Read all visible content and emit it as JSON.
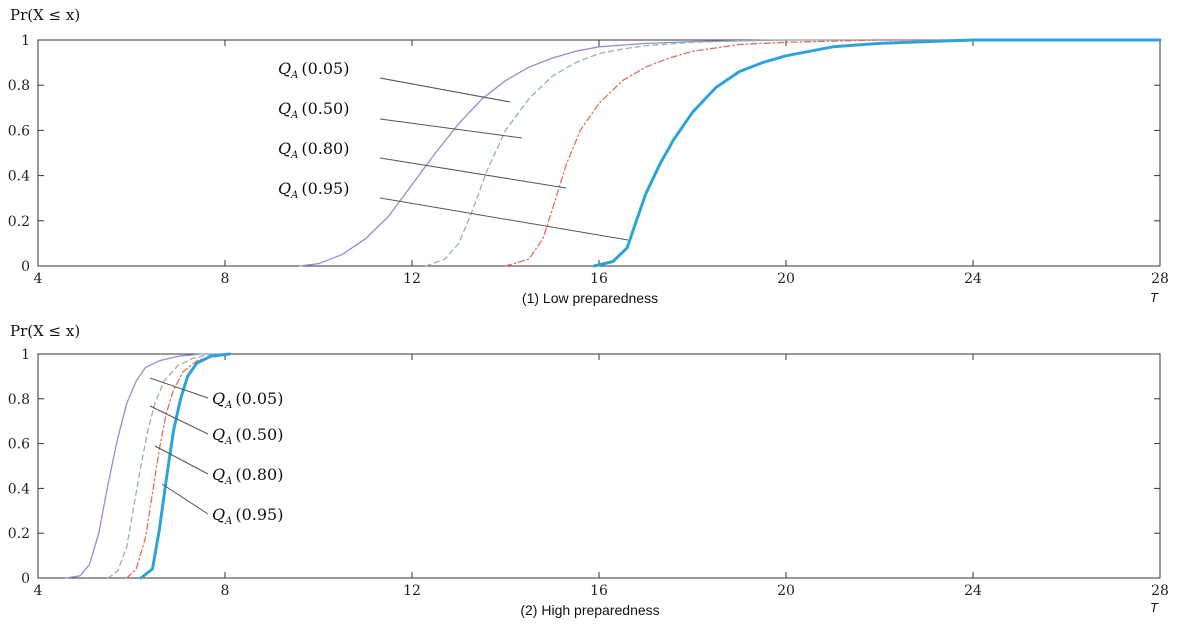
{
  "chart_data": [
    {
      "type": "line",
      "caption": "(1) Low preparedness",
      "ylabel": "Pr(X ≤ x)",
      "xlabel": "T",
      "xlim": [
        4,
        28
      ],
      "ylim": [
        0,
        1
      ],
      "xticks": [
        "4",
        "8",
        "12",
        "16",
        "20",
        "24",
        "28"
      ],
      "yticks": [
        "0",
        "0.2",
        "0.4",
        "0.6",
        "0.8",
        "1"
      ],
      "grid": false,
      "series": [
        {
          "name": "Q_A (0.05)",
          "color": "#8f8fd6",
          "style": "solid",
          "x": [
            9.6,
            10,
            10.5,
            11,
            11.5,
            12,
            12.5,
            13,
            13.5,
            14,
            14.5,
            15,
            15.5,
            16,
            17,
            18,
            19,
            20,
            22,
            24,
            28
          ],
          "y": [
            0,
            0.01,
            0.05,
            0.12,
            0.22,
            0.36,
            0.5,
            0.63,
            0.74,
            0.82,
            0.88,
            0.92,
            0.95,
            0.97,
            0.985,
            0.993,
            0.997,
            1,
            1,
            1,
            1
          ]
        },
        {
          "name": "Q_A (0.50)",
          "color": "#8fb89a",
          "style": "dashed",
          "x": [
            12.3,
            12.7,
            13,
            13.3,
            13.6,
            14,
            14.5,
            15,
            15.5,
            16,
            16.5,
            17,
            18,
            19,
            20,
            22,
            24,
            28
          ],
          "y": [
            0,
            0.03,
            0.1,
            0.25,
            0.42,
            0.6,
            0.74,
            0.84,
            0.9,
            0.94,
            0.96,
            0.975,
            0.99,
            0.996,
            1,
            1,
            1,
            1
          ]
        },
        {
          "name": "Q_A (0.80)",
          "color": "#e86a5e",
          "style": "dashdot",
          "x": [
            14,
            14.5,
            14.8,
            15,
            15.3,
            15.6,
            16,
            16.5,
            17,
            17.5,
            18,
            19,
            20,
            21,
            22,
            24,
            28
          ],
          "y": [
            0,
            0.03,
            0.12,
            0.25,
            0.45,
            0.6,
            0.72,
            0.82,
            0.88,
            0.92,
            0.95,
            0.98,
            0.99,
            0.995,
            1,
            1,
            1
          ]
        },
        {
          "name": "Q_A (0.95)",
          "color": "#2ea3d8",
          "style": "solid-thick",
          "x": [
            15.9,
            16.3,
            16.6,
            16.8,
            17,
            17.3,
            17.6,
            18,
            18.5,
            19,
            19.5,
            20,
            21,
            22,
            23,
            24,
            28
          ],
          "y": [
            0,
            0.02,
            0.08,
            0.2,
            0.32,
            0.45,
            0.56,
            0.68,
            0.79,
            0.86,
            0.9,
            0.93,
            0.97,
            0.985,
            0.993,
            1,
            1
          ]
        }
      ],
      "annotations": [
        {
          "base": "Q",
          "sub": "A",
          "arg": "(0.05)"
        },
        {
          "base": "Q",
          "sub": "A",
          "arg": "(0.50)"
        },
        {
          "base": "Q",
          "sub": "A",
          "arg": "(0.80)"
        },
        {
          "base": "Q",
          "sub": "A",
          "arg": "(0.95)"
        }
      ]
    },
    {
      "type": "line",
      "caption": "(2) High preparedness",
      "ylabel": "Pr(X ≤ x)",
      "xlabel": "T",
      "xlim": [
        4,
        28
      ],
      "ylim": [
        0,
        1
      ],
      "xticks": [
        "4",
        "8",
        "12",
        "16",
        "20",
        "24",
        "28"
      ],
      "yticks": [
        "0",
        "0.2",
        "0.4",
        "0.6",
        "0.8",
        "1"
      ],
      "grid": false,
      "series": [
        {
          "name": "Q_A (0.05)",
          "color": "#8f8fd6",
          "style": "solid",
          "x": [
            4.6,
            4.9,
            5.1,
            5.3,
            5.5,
            5.7,
            5.9,
            6.1,
            6.3,
            6.6,
            7,
            7.5,
            8
          ],
          "y": [
            0,
            0.01,
            0.06,
            0.2,
            0.42,
            0.62,
            0.78,
            0.88,
            0.94,
            0.97,
            0.99,
            1,
            1
          ]
        },
        {
          "name": "Q_A (0.50)",
          "color": "#8fb89a",
          "style": "dashed",
          "x": [
            5.5,
            5.7,
            5.9,
            6.05,
            6.2,
            6.35,
            6.5,
            6.7,
            7,
            7.3,
            7.6,
            8
          ],
          "y": [
            0,
            0.03,
            0.14,
            0.32,
            0.5,
            0.66,
            0.78,
            0.88,
            0.95,
            0.98,
            0.995,
            1
          ]
        },
        {
          "name": "Q_A (0.80)",
          "color": "#e86a5e",
          "style": "dashdot",
          "x": [
            5.9,
            6.1,
            6.3,
            6.45,
            6.6,
            6.75,
            6.9,
            7.1,
            7.4,
            7.7,
            8
          ],
          "y": [
            0,
            0.04,
            0.18,
            0.38,
            0.58,
            0.74,
            0.84,
            0.92,
            0.97,
            0.99,
            1
          ]
        },
        {
          "name": "Q_A (0.95)",
          "color": "#2ea3d8",
          "style": "solid-thick",
          "x": [
            6.2,
            6.45,
            6.6,
            6.75,
            6.9,
            7.05,
            7.2,
            7.4,
            7.7,
            8.1
          ],
          "y": [
            0,
            0.04,
            0.22,
            0.45,
            0.66,
            0.8,
            0.9,
            0.96,
            0.99,
            1
          ]
        }
      ],
      "annotations": [
        {
          "base": "Q",
          "sub": "A",
          "arg": "(0.05)"
        },
        {
          "base": "Q",
          "sub": "A",
          "arg": "(0.50)"
        },
        {
          "base": "Q",
          "sub": "A",
          "arg": "(0.80)"
        },
        {
          "base": "Q",
          "sub": "A",
          "arg": "(0.95)"
        }
      ]
    }
  ]
}
